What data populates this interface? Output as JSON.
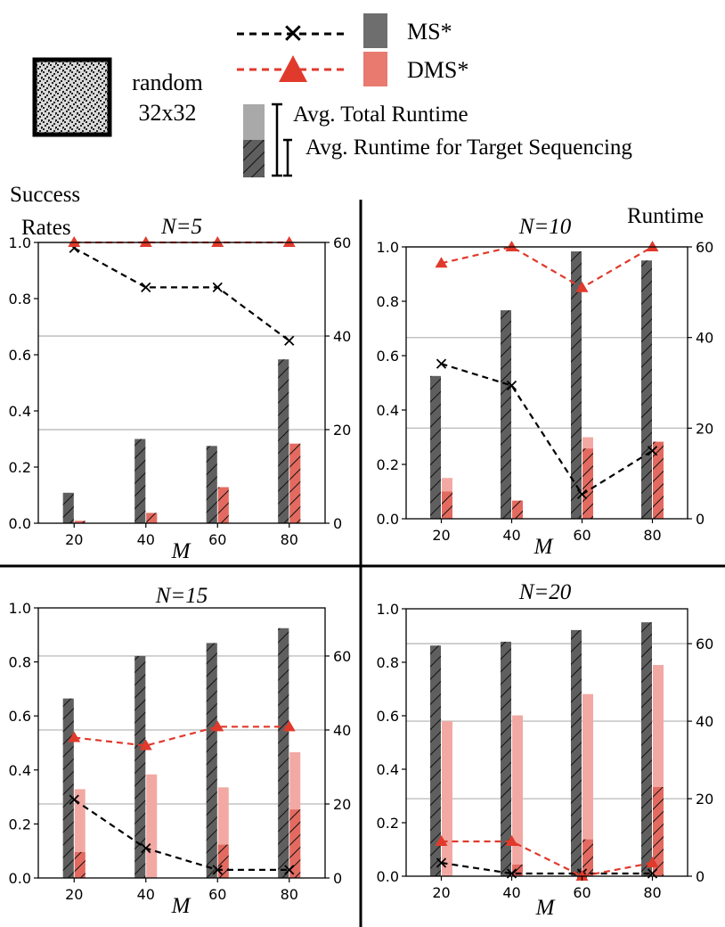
{
  "legend": {
    "map_label_line1": "random",
    "map_label_line2": "32x32",
    "ms_label": "MS*",
    "dms_label": "DMS*",
    "total_runtime_label": "Avg. Total Runtime",
    "target_runtime_label": "Avg. Runtime for Target Sequencing"
  },
  "labels": {
    "left_axis_line1": "Success",
    "left_axis_line2": "Rates",
    "right_axis": "Runtime",
    "x_axis": "M"
  },
  "colors": {
    "ms": "#000000",
    "dms": "#e03a2c",
    "ms_bar": "#5f5f5f",
    "ms_bar_light": "#a9a9a9",
    "dms_bar": "#e36a60",
    "dms_bar_light": "#f2a9a4",
    "grid": "#bfbfbf"
  },
  "chart_data": [
    {
      "type": "bar+line",
      "title": "N=5",
      "categories": [
        "20",
        "40",
        "60",
        "80"
      ],
      "ylim_left": [
        0,
        1.0
      ],
      "yticks_left": [
        "0.0",
        "0.2",
        "0.4",
        "0.6",
        "0.8",
        "1.0"
      ],
      "ylim_right": [
        0,
        60
      ],
      "yticks_right": [
        "0",
        "20",
        "40",
        "60"
      ],
      "success_rate": {
        "MS*": [
          0.98,
          0.84,
          0.84,
          0.65
        ],
        "DMS*": [
          1.0,
          1.0,
          1.0,
          1.0
        ]
      },
      "runtime_total": {
        "MS*": [
          6.5,
          18,
          16.5,
          35
        ],
        "DMS*": [
          0.5,
          2.2,
          7.7,
          17
        ]
      },
      "runtime_target": {
        "MS*": [
          6.5,
          18,
          16.5,
          35
        ],
        "DMS*": [
          0.5,
          2.2,
          7.7,
          17
        ]
      }
    },
    {
      "type": "bar+line",
      "title": "N=10",
      "categories": [
        "20",
        "40",
        "60",
        "80"
      ],
      "ylim_left": [
        0,
        1.0
      ],
      "yticks_left": [
        "0.0",
        "0.2",
        "0.4",
        "0.6",
        "0.8",
        "1.0"
      ],
      "ylim_right": [
        0,
        60
      ],
      "yticks_right": [
        "0",
        "20",
        "40",
        "60"
      ],
      "success_rate": {
        "MS*": [
          0.57,
          0.49,
          0.09,
          0.25
        ],
        "DMS*": [
          0.94,
          1.0,
          0.85,
          1.0
        ]
      },
      "runtime_total": {
        "MS*": [
          31.5,
          46,
          59,
          57
        ],
        "DMS*": [
          9,
          4,
          18,
          17
        ]
      },
      "runtime_target": {
        "MS*": [
          31.5,
          46,
          59,
          57
        ],
        "DMS*": [
          6,
          4,
          15.5,
          17
        ]
      }
    },
    {
      "type": "bar+line",
      "title": "N=15",
      "categories": [
        "20",
        "40",
        "60",
        "80"
      ],
      "ylim_left": [
        0,
        1.0
      ],
      "yticks_left": [
        "0.0",
        "0.2",
        "0.4",
        "0.6",
        "0.8",
        "1.0"
      ],
      "ylim_right": [
        0,
        73
      ],
      "yticks_right": [
        "0",
        "20",
        "40",
        "60"
      ],
      "success_rate": {
        "MS*": [
          0.29,
          0.11,
          0.03,
          0.03
        ],
        "DMS*": [
          0.52,
          0.49,
          0.56,
          0.56
        ]
      },
      "runtime_total": {
        "MS*": [
          48.5,
          60,
          63.5,
          67.5
        ],
        "DMS*": [
          24,
          28,
          24.5,
          34
        ]
      },
      "runtime_target": {
        "MS*": [
          48.5,
          60,
          63.5,
          67.5
        ],
        "DMS*": [
          7,
          0,
          9,
          18.5
        ]
      }
    },
    {
      "type": "bar+line",
      "title": "N=20",
      "categories": [
        "20",
        "40",
        "60",
        "80"
      ],
      "ylim_left": [
        0,
        1.0
      ],
      "yticks_left": [
        "0.0",
        "0.2",
        "0.4",
        "0.6",
        "0.8",
        "1.0"
      ],
      "ylim_right": [
        0,
        69
      ],
      "yticks_right": [
        "0",
        "20",
        "40",
        "60"
      ],
      "success_rate": {
        "MS*": [
          0.05,
          0.01,
          0.01,
          0.01
        ],
        "DMS*": [
          0.13,
          0.13,
          0.0,
          0.05
        ]
      },
      "runtime_total": {
        "MS*": [
          59.5,
          60.5,
          63.5,
          65.5
        ],
        "DMS*": [
          40,
          41.5,
          47,
          54.5
        ]
      },
      "runtime_target": {
        "MS*": [
          59.5,
          60.5,
          63.5,
          65.5
        ],
        "DMS*": [
          0,
          3,
          9.5,
          23
        ]
      }
    }
  ]
}
